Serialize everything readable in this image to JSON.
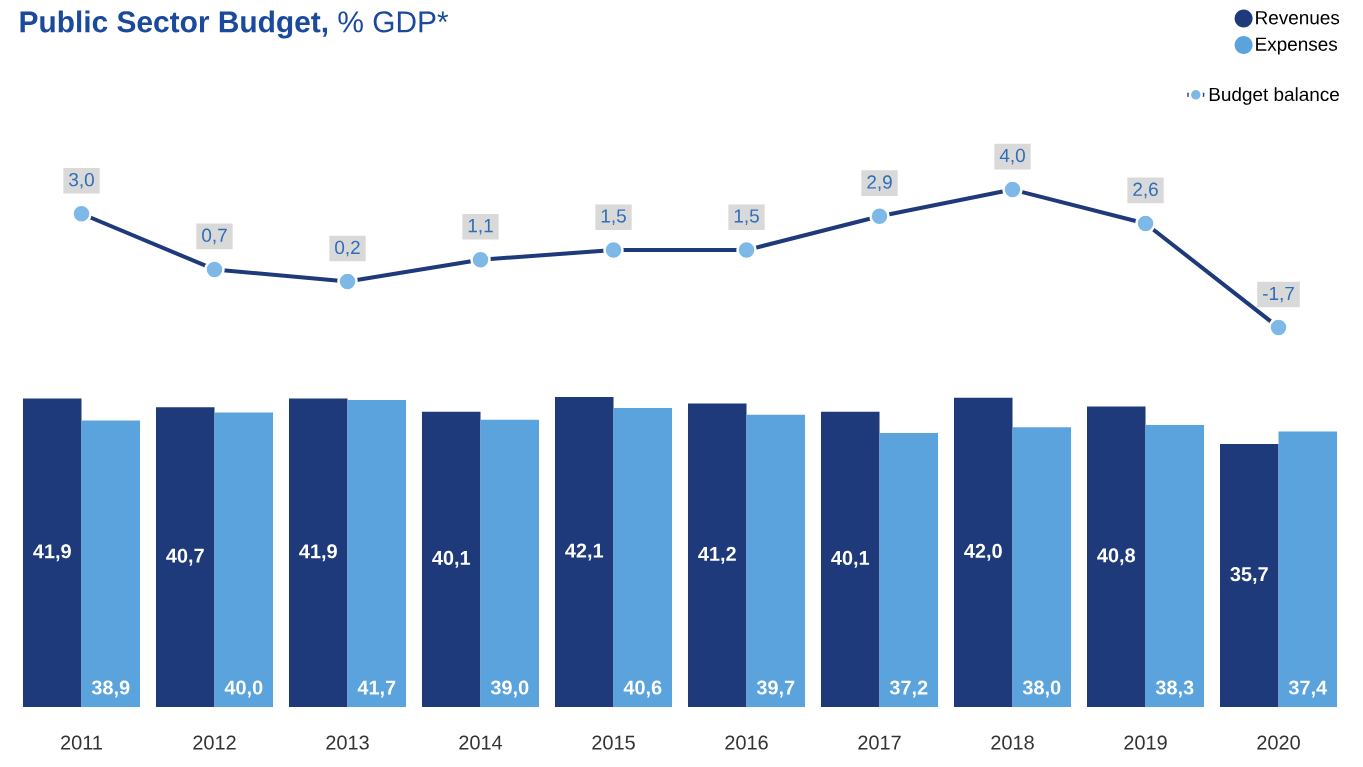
{
  "chart_data": [
    {
      "type": "line",
      "title": "**Public Sector Budget,** % GDP*",
      "categories": [
        "2011",
        "2012",
        "2013",
        "2014",
        "2015",
        "2016",
        "2017",
        "2018",
        "2019",
        "2020"
      ],
      "series": [
        {
          "name": "Budget balance",
          "color": "#1f3a7a",
          "values": [
            3.0,
            0.7,
            0.2,
            1.1,
            1.5,
            1.5,
            2.9,
            4.0,
            2.6,
            -1.7
          ],
          "value_labels": [
            "3,0",
            "0,7",
            "0,2",
            "1,1",
            "1,5",
            "1,5",
            "2,9",
            "4,0",
            "2,6",
            "-1,7"
          ]
        }
      ],
      "legend": "top right",
      "marker": "circle",
      "tick_labels": false
    },
    {
      "type": "bar",
      "categories": [
        "2011",
        "2012",
        "2013",
        "2014",
        "2015",
        "2016",
        "2017",
        "2018",
        "2019",
        "2020"
      ],
      "series": [
        {
          "name": "Revenues",
          "color": "#1f3a7a",
          "values": [
            41.9,
            40.7,
            41.9,
            40.1,
            42.1,
            41.2,
            40.1,
            42.0,
            40.8,
            35.7
          ],
          "value_labels": [
            "41,9",
            "40,7",
            "41,9",
            "40,1",
            "42,1",
            "41,2",
            "40,1",
            "42,0",
            "40,8",
            "35,7"
          ]
        },
        {
          "name": "Expenses",
          "color": "#5ba3dc",
          "values": [
            38.9,
            40.0,
            41.7,
            39.0,
            40.6,
            39.7,
            37.2,
            38.0,
            38.3,
            37.4
          ],
          "value_labels": [
            "38,9",
            "40,0",
            "41,7",
            "39,0",
            "40,6",
            "39,7",
            "37,2",
            "38,0",
            "38,3",
            "37,4"
          ]
        }
      ],
      "legend": "top right",
      "tick_labels": "x"
    }
  ]
}
